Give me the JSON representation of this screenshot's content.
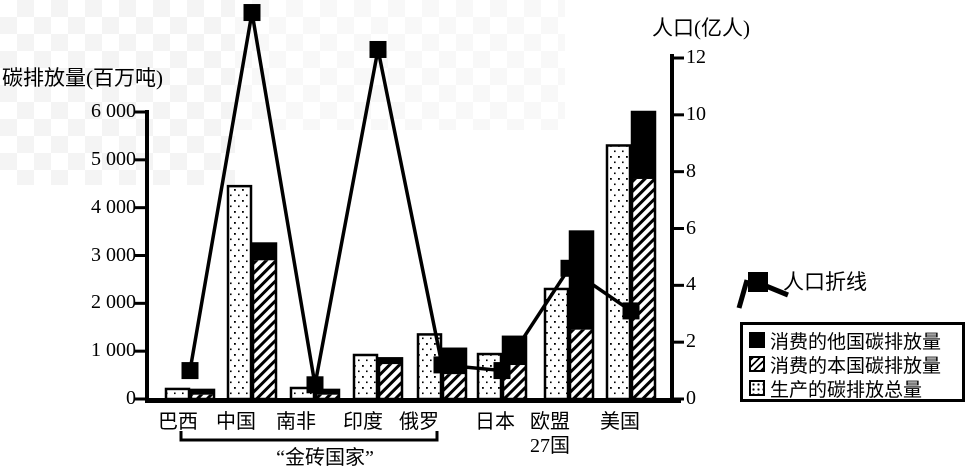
{
  "legend": {
    "line_label": "人口折线",
    "items": [
      {
        "label": "消费的他国碳排放量",
        "pattern": "solid-black",
        "series_key": "foreign_consumed"
      },
      {
        "label": "消费的本国碳排放量",
        "pattern": "diagonal-hatch",
        "series_key": "domestic_consumed"
      },
      {
        "label": "生产的碳排放总量",
        "pattern": "dotted",
        "series_key": "produced_total"
      }
    ]
  },
  "group_bracket": {
    "label": "“金砖国家”",
    "covers": [
      "巴西",
      "中国",
      "南非",
      "印度",
      "俄罗"
    ]
  },
  "chart_data": {
    "type": "bar+line",
    "left_axis": {
      "title": "碳排放量(百万吨)",
      "tick_values": [
        0,
        1000,
        2000,
        3000,
        4000,
        5000,
        6000
      ],
      "tick_labels": [
        "0",
        "1 000",
        "2 000",
        "3 000",
        "4 000",
        "5 000",
        "6 000"
      ],
      "ylim": [
        0,
        6000
      ]
    },
    "right_axis": {
      "title": "人口(亿人)",
      "tick_values": [
        0,
        2,
        4,
        6,
        8,
        10,
        12
      ],
      "tick_labels": [
        "0",
        "2",
        "4",
        "6",
        "8",
        "10",
        "12"
      ],
      "ylim": [
        0,
        12
      ]
    },
    "categories": [
      {
        "label": "巴西",
        "sublabel": ""
      },
      {
        "label": "中国",
        "sublabel": ""
      },
      {
        "label": "南非",
        "sublabel": ""
      },
      {
        "label": "印度",
        "sublabel": ""
      },
      {
        "label": "俄罗",
        "sublabel": ""
      },
      {
        "label": "日本",
        "sublabel": ""
      },
      {
        "label": "欧盟",
        "sublabel": "27国"
      },
      {
        "label": "美国",
        "sublabel": ""
      }
    ],
    "series": [
      {
        "name": "生产的碳排放总量",
        "type": "bar",
        "axis": "left",
        "pattern": "dotted",
        "values": [
          210,
          4450,
          230,
          920,
          1350,
          940,
          2300,
          5300
        ]
      },
      {
        "name": "消费的本国碳排放量",
        "type": "bar",
        "stack": "consumed",
        "axis": "left",
        "pattern": "diagonal-hatch",
        "values": [
          90,
          2900,
          90,
          730,
          520,
          710,
          1450,
          4600
        ]
      },
      {
        "name": "消费的他国碳排放量",
        "type": "bar",
        "stack": "consumed",
        "axis": "left",
        "pattern": "solid-black",
        "values": [
          100,
          350,
          100,
          120,
          530,
          590,
          2050,
          1400
        ]
      },
      {
        "name": "人口折线",
        "type": "line",
        "axis": "right",
        "marker": "black-square",
        "values": [
          1.0,
          13.6,
          0.5,
          12.3,
          1.2,
          1.0,
          4.6,
          3.1
        ]
      }
    ],
    "legend_position": "right",
    "grid": false
  },
  "colors": {
    "ink": "#000000",
    "background": "#ffffff",
    "watermark": "#c9c9c9"
  }
}
